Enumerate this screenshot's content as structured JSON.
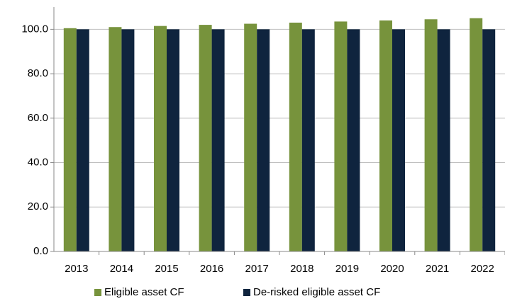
{
  "chart_data": {
    "type": "bar",
    "categories": [
      "2013",
      "2014",
      "2015",
      "2016",
      "2017",
      "2018",
      "2019",
      "2020",
      "2021",
      "2022"
    ],
    "series": [
      {
        "name": "Eligible asset CF",
        "color": "#77933c",
        "values": [
          100.5,
          101,
          101.5,
          102,
          102.5,
          103,
          103.5,
          104,
          104.5,
          105
        ]
      },
      {
        "name": "De-risked eligible asset CF",
        "color": "#0f243e",
        "values": [
          100,
          100,
          100,
          100,
          100,
          100,
          100,
          100,
          100,
          100
        ]
      }
    ],
    "ylim": [
      0,
      110
    ],
    "yticks": [
      {
        "value": 0,
        "label": "0.0"
      },
      {
        "value": 20,
        "label": "20.0"
      },
      {
        "value": 40,
        "label": "40.0"
      },
      {
        "value": 60,
        "label": "60.0"
      },
      {
        "value": 80,
        "label": "80.0"
      },
      {
        "value": 100,
        "label": "100.0"
      }
    ],
    "grid": true,
    "legend": "bottom"
  }
}
